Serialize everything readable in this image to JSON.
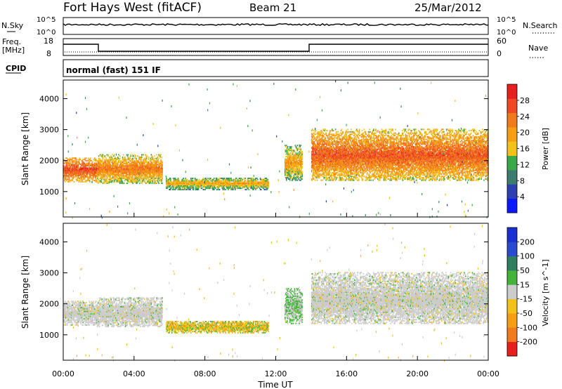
{
  "header": {
    "title": "Fort Hays West (fitACF)",
    "beam": "Beam 21",
    "date": "25/Mar/2012"
  },
  "status_panels": {
    "nsky_label": "N.Sky",
    "nsky_ticks": [
      "10^5",
      "10^0"
    ],
    "nsearch_label": "N.Search",
    "nsearch_ticks": [
      "10^5",
      "10^0"
    ],
    "freq_label": "Freq.",
    "freq_units": "[MHz]",
    "freq_ticks": [
      "18",
      "8"
    ],
    "nave_label": "Nave",
    "nave_ticks": [
      "60",
      "0"
    ],
    "cpid_label": "CPID",
    "cpid_value": "normal (fast) 151 IF"
  },
  "colors": {
    "power": [
      "#0a19ff",
      "#2e3fb0",
      "#3c7c6f",
      "#3aa84a",
      "#f2c11a",
      "#f59e14",
      "#f07a1c",
      "#ee4a25",
      "#e81f1f"
    ],
    "velocity": [
      "#1a2fcf",
      "#2a4ad0",
      "#2f7f5f",
      "#44b33a",
      "#cccccc",
      "#f2c11a",
      "#f59e14",
      "#f07a1c",
      "#e81f1f"
    ],
    "bg": "#ffffff"
  },
  "chart_data": [
    {
      "type": "heatmap",
      "name": "power",
      "ylabel": "Slant Range [km]",
      "xlabel": "Time UT",
      "x_ticks": [
        "00:00",
        "04:00",
        "08:00",
        "12:00",
        "16:00",
        "20:00",
        "00:00"
      ],
      "y_ticks": [
        1000,
        2000,
        3000,
        4000
      ],
      "ylim": [
        180,
        4600
      ],
      "xlim_hours": [
        0,
        24
      ],
      "colorbar": {
        "label": "Power [dB]",
        "ticks": [
          4,
          8,
          12,
          16,
          20,
          24,
          28
        ],
        "range": [
          0,
          30
        ]
      },
      "echo_regions": [
        {
          "t": [
            0.0,
            1.9
          ],
          "r": [
            1300,
            2100
          ],
          "level": 0.6
        },
        {
          "t": [
            1.9,
            5.6
          ],
          "r": [
            1250,
            2200
          ],
          "level": 0.45
        },
        {
          "t": [
            5.8,
            11.6
          ],
          "r": [
            1050,
            1450
          ],
          "level": 0.3
        },
        {
          "t": [
            12.5,
            13.5
          ],
          "r": [
            1350,
            2500
          ],
          "level": 0.35
        },
        {
          "t": [
            14.0,
            24.0
          ],
          "r": [
            1350,
            3000
          ],
          "level": 0.55
        }
      ]
    },
    {
      "type": "heatmap",
      "name": "velocity",
      "ylabel": "Slant Range [km]",
      "xlabel": "Time UT",
      "x_ticks": [
        "00:00",
        "04:00",
        "08:00",
        "12:00",
        "16:00",
        "20:00",
        "00:00"
      ],
      "y_ticks": [
        1000,
        2000,
        3000,
        4000
      ],
      "ylim": [
        180,
        4600
      ],
      "xlim_hours": [
        0,
        24
      ],
      "colorbar": {
        "label": "Velocity [m s^-1]",
        "ticks": [
          "200",
          "100",
          "50",
          "15",
          "-15",
          "-50",
          "-100",
          "-200"
        ]
      },
      "echo_regions": [
        {
          "t": [
            0.0,
            1.9
          ],
          "r": [
            1300,
            2100
          ],
          "v": "near-zero"
        },
        {
          "t": [
            1.9,
            5.6
          ],
          "r": [
            1250,
            2200
          ],
          "v": "near-zero"
        },
        {
          "t": [
            5.8,
            11.6
          ],
          "r": [
            1050,
            1450
          ],
          "v": "negative"
        },
        {
          "t": [
            12.5,
            13.5
          ],
          "r": [
            1350,
            2500
          ],
          "v": "mixed"
        },
        {
          "t": [
            14.0,
            24.0
          ],
          "r": [
            1350,
            3000
          ],
          "v": "near-zero"
        }
      ]
    }
  ]
}
